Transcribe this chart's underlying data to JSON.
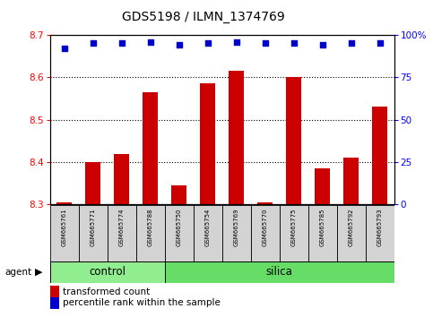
{
  "title": "GDS5198 / ILMN_1374769",
  "samples": [
    "GSM665761",
    "GSM665771",
    "GSM665774",
    "GSM665788",
    "GSM665750",
    "GSM665754",
    "GSM665769",
    "GSM665770",
    "GSM665775",
    "GSM665785",
    "GSM665792",
    "GSM665793"
  ],
  "groups": [
    "control",
    "control",
    "control",
    "control",
    "silica",
    "silica",
    "silica",
    "silica",
    "silica",
    "silica",
    "silica",
    "silica"
  ],
  "transformed_count": [
    8.305,
    8.4,
    8.42,
    8.565,
    8.345,
    8.585,
    8.615,
    8.305,
    8.6,
    8.385,
    8.41,
    8.53
  ],
  "percentile_rank": [
    92,
    95,
    95,
    96,
    94,
    95,
    96,
    95,
    95,
    94,
    95,
    95
  ],
  "ylim_left": [
    8.3,
    8.7
  ],
  "ylim_right": [
    0,
    100
  ],
  "yticks_left": [
    8.3,
    8.4,
    8.5,
    8.6,
    8.7
  ],
  "yticks_right": [
    0,
    25,
    50,
    75,
    100
  ],
  "ytick_labels_right": [
    "0",
    "25",
    "50",
    "75",
    "100%"
  ],
  "bar_color": "#cc0000",
  "dot_color": "#0000cc",
  "control_color": "#90ee90",
  "silica_color": "#66dd66",
  "agent_label": "agent",
  "group_label_control": "control",
  "group_label_silica": "silica",
  "legend_bar_label": "transformed count",
  "legend_dot_label": "percentile rank within the sample",
  "bar_width": 0.55,
  "background_main": "#ffffff",
  "label_box_color": "#d3d3d3",
  "n_control": 4,
  "n_silica": 8
}
